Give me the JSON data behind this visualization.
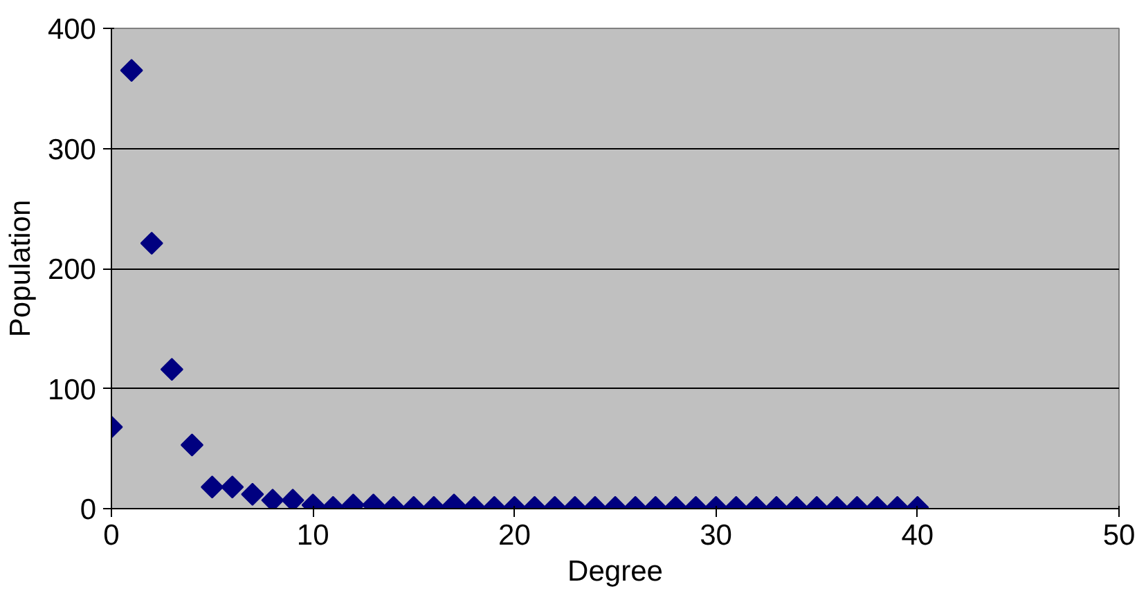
{
  "chart_data": {
    "type": "scatter",
    "xlabel": "Degree",
    "ylabel": "Population",
    "x": [
      0,
      1,
      2,
      3,
      4,
      5,
      6,
      7,
      8,
      9,
      10,
      11,
      12,
      13,
      14,
      15,
      16,
      17,
      18,
      19,
      20,
      21,
      22,
      23,
      24,
      25,
      26,
      27,
      28,
      29,
      30,
      31,
      32,
      33,
      34,
      35,
      36,
      37,
      38,
      39,
      40
    ],
    "series": [
      {
        "color": "#000080",
        "values": [
          68,
          365,
          221,
          116,
          53,
          18,
          18,
          12,
          7,
          7,
          3,
          1,
          3,
          3,
          1,
          1,
          1,
          3,
          1,
          1,
          1,
          1,
          1,
          1,
          1,
          1,
          1,
          1,
          1,
          1,
          1,
          1,
          1,
          1,
          1,
          1,
          1,
          1,
          1,
          1,
          1
        ]
      }
    ],
    "xlim": [
      0,
      50
    ],
    "xticks": [
      0,
      10,
      20,
      30,
      40,
      50
    ],
    "ylim": [
      0,
      400
    ],
    "yticks": [
      0,
      100,
      200,
      300,
      400
    ],
    "grid": "y",
    "marker": "diamond"
  }
}
